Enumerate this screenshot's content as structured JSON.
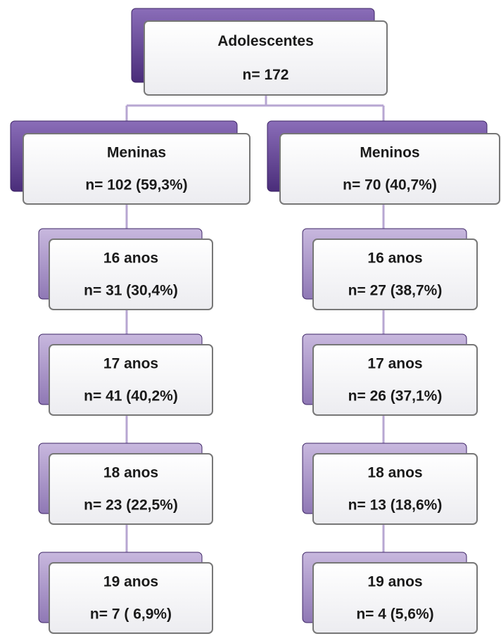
{
  "root": {
    "label": "Adolescentes",
    "count": "n= 172"
  },
  "groups": [
    {
      "label": "Meninas",
      "count": "n= 102 (59,3%)",
      "ages": [
        {
          "label": "16 anos",
          "count": "n= 31 (30,4%)"
        },
        {
          "label": "17 anos",
          "count": "n= 41 (40,2%)"
        },
        {
          "label": "18 anos",
          "count": "n= 23 (22,5%)"
        },
        {
          "label": "19 anos",
          "count": "n= 7 ( 6,9%)"
        }
      ]
    },
    {
      "label": "Meninos",
      "count": "n= 70 (40,7%)",
      "ages": [
        {
          "label": "16 anos",
          "count": "n= 27 (38,7%)"
        },
        {
          "label": "17 anos",
          "count": "n= 26 (37,1%)"
        },
        {
          "label": "18 anos",
          "count": "n= 13 (18,6%)"
        },
        {
          "label": "19 anos",
          "count": "n= 4 (5,6%)"
        }
      ]
    }
  ]
}
